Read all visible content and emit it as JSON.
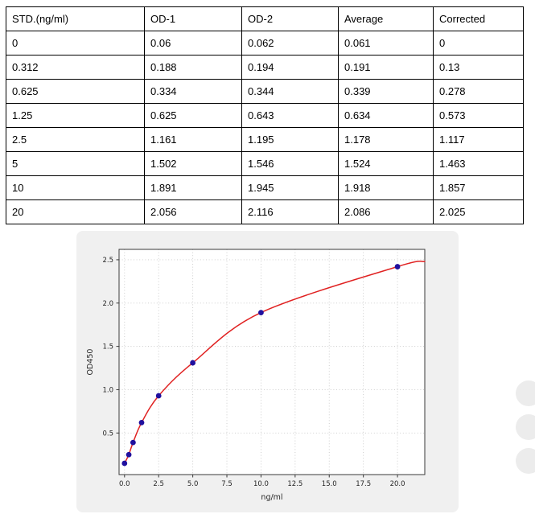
{
  "table": {
    "headers": [
      "STD.(ng/ml)",
      "OD-1",
      "OD-2",
      "Average",
      "Corrected"
    ],
    "rows": [
      [
        "0",
        "0.06",
        "0.062",
        "0.061",
        "0"
      ],
      [
        "0.312",
        "0.188",
        "0.194",
        "0.191",
        "0.13"
      ],
      [
        "0.625",
        "0.334",
        "0.344",
        "0.339",
        "0.278"
      ],
      [
        "1.25",
        "0.625",
        "0.643",
        "0.634",
        "0.573"
      ],
      [
        "2.5",
        "1.161",
        "1.195",
        "1.178",
        "1.117"
      ],
      [
        "5",
        "1.502",
        "1.546",
        "1.524",
        "1.463"
      ],
      [
        "10",
        "1.891",
        "1.945",
        "1.918",
        "1.857"
      ],
      [
        "20",
        "2.056",
        "2.116",
        "2.086",
        "2.025"
      ]
    ]
  },
  "chart_data": {
    "type": "scatter",
    "title": "",
    "xlabel": "ng/ml",
    "ylabel": "OD450",
    "x": [
      0,
      0.312,
      0.625,
      1.25,
      2.5,
      5,
      10,
      20
    ],
    "y": [
      0.15,
      0.25,
      0.39,
      0.62,
      0.93,
      1.31,
      1.89,
      2.42
    ],
    "fit_curve": {
      "x": [
        0,
        0.312,
        0.625,
        1.25,
        2.5,
        5,
        10,
        20,
        22
      ],
      "y": [
        0.15,
        0.25,
        0.39,
        0.62,
        0.93,
        1.31,
        1.89,
        2.42,
        2.48
      ]
    },
    "x_ticks": [
      0,
      2.5,
      5,
      7.5,
      10,
      12.5,
      15,
      17.5,
      20
    ],
    "x_tick_labels": [
      "0.0",
      "2.5",
      "5.0",
      "7.5",
      "10.0",
      "12.5",
      "15.0",
      "17.5",
      "20.0"
    ],
    "y_ticks": [
      0.5,
      1.0,
      1.5,
      2.0,
      2.5
    ],
    "y_tick_labels": [
      "0.5",
      "1.0",
      "1.5",
      "2.0",
      "2.5"
    ],
    "xlim": [
      -0.4,
      22.0
    ],
    "ylim": [
      0.02,
      2.62
    ],
    "grid": true,
    "legend": null,
    "point_color": "#20109e",
    "curve_color": "#e02222",
    "panel_background": "#f0f0f0",
    "plot_background": "#ffffff"
  }
}
